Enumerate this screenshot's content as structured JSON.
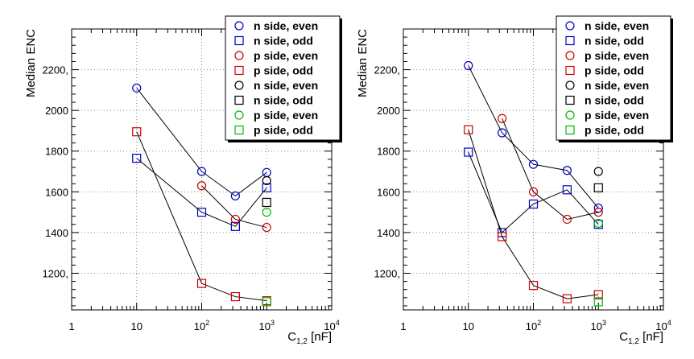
{
  "chart_data": [
    {
      "type": "scatter",
      "title": "",
      "xlabel": "C",
      "xlabel_sub": "1,2",
      "xlabel_unit": " [nF]",
      "ylabel": "Median ENC",
      "xscale": "log",
      "xlim": [
        1,
        10000
      ],
      "ylim": [
        1020,
        2400
      ],
      "x_ticks": [
        {
          "value": 1,
          "base": "1",
          "exp": ""
        },
        {
          "value": 10,
          "base": "10",
          "exp": ""
        },
        {
          "value": 100,
          "base": "10",
          "exp": "2"
        },
        {
          "value": 1000,
          "base": "10",
          "exp": "3"
        },
        {
          "value": 10000,
          "base": "10",
          "exp": "4"
        }
      ],
      "y_ticks": [
        {
          "value": 1200,
          "label": "1200,"
        },
        {
          "value": 1400,
          "label": "1400"
        },
        {
          "value": 1600,
          "label": "1600"
        },
        {
          "value": 1800,
          "label": "1800"
        },
        {
          "value": 2000,
          "label": "2000"
        },
        {
          "value": 2200,
          "label": "2200,"
        }
      ],
      "grid": true,
      "legend_position": "top-right",
      "series": [
        {
          "name": "n side, even",
          "marker": "circle",
          "color": "#0000cc",
          "connected": true,
          "x": [
            10,
            100,
            330,
            1000
          ],
          "y": [
            2110,
            1700,
            1580,
            1695
          ]
        },
        {
          "name": "n side, odd",
          "marker": "square",
          "color": "#0000cc",
          "connected": true,
          "x": [
            10,
            100,
            330,
            1000
          ],
          "y": [
            1765,
            1500,
            1430,
            1620
          ]
        },
        {
          "name": "p side, even",
          "marker": "circle",
          "color": "#cc0000",
          "connected": true,
          "x": [
            100,
            330,
            1000
          ],
          "y": [
            1630,
            1465,
            1425
          ]
        },
        {
          "name": "p side, odd",
          "marker": "square",
          "color": "#cc0000",
          "connected": true,
          "x": [
            10,
            100,
            330,
            1000
          ],
          "y": [
            1895,
            1150,
            1085,
            1065
          ]
        },
        {
          "name": "n side, even",
          "marker": "circle",
          "color": "#000000",
          "connected": false,
          "x": [
            1000
          ],
          "y": [
            1655
          ]
        },
        {
          "name": "n side, odd",
          "marker": "square",
          "color": "#000000",
          "connected": false,
          "x": [
            1000
          ],
          "y": [
            1548
          ]
        },
        {
          "name": "p side, even",
          "marker": "circle",
          "color": "#00bb00",
          "connected": false,
          "x": [
            1000
          ],
          "y": [
            1500
          ]
        },
        {
          "name": "p side, odd",
          "marker": "square",
          "color": "#00bb00",
          "connected": false,
          "x": [
            1000
          ],
          "y": [
            1060
          ]
        }
      ]
    },
    {
      "type": "scatter",
      "title": "",
      "xlabel": "C",
      "xlabel_sub": "1,2",
      "xlabel_unit": " [nF]",
      "ylabel": "Median ENC",
      "xscale": "log",
      "xlim": [
        1,
        10000
      ],
      "ylim": [
        1020,
        2400
      ],
      "x_ticks": [
        {
          "value": 1,
          "base": "1",
          "exp": ""
        },
        {
          "value": 10,
          "base": "10",
          "exp": ""
        },
        {
          "value": 100,
          "base": "10",
          "exp": "2"
        },
        {
          "value": 1000,
          "base": "10",
          "exp": "3"
        },
        {
          "value": 10000,
          "base": "10",
          "exp": "4"
        }
      ],
      "y_ticks": [
        {
          "value": 1200,
          "label": "1200,"
        },
        {
          "value": 1400,
          "label": "1400"
        },
        {
          "value": 1600,
          "label": "1600"
        },
        {
          "value": 1800,
          "label": "1800"
        },
        {
          "value": 2000,
          "label": "2000"
        },
        {
          "value": 2200,
          "label": "2200,"
        }
      ],
      "grid": true,
      "legend_position": "top-right",
      "series": [
        {
          "name": "n side, even",
          "marker": "circle",
          "color": "#0000cc",
          "connected": true,
          "x": [
            10,
            33,
            100,
            330,
            1000
          ],
          "y": [
            2220,
            1890,
            1735,
            1705,
            1520
          ]
        },
        {
          "name": "n side, odd",
          "marker": "square",
          "color": "#0000cc",
          "connected": true,
          "x": [
            10,
            33,
            100,
            330,
            1000
          ],
          "y": [
            1795,
            1400,
            1540,
            1610,
            1440
          ]
        },
        {
          "name": "p side, even",
          "marker": "circle",
          "color": "#cc0000",
          "connected": true,
          "x": [
            33,
            100,
            330,
            1000
          ],
          "y": [
            1960,
            1600,
            1465,
            1500
          ]
        },
        {
          "name": "p side, odd",
          "marker": "square",
          "color": "#cc0000",
          "connected": true,
          "x": [
            10,
            33,
            100,
            330,
            1000
          ],
          "y": [
            1905,
            1380,
            1140,
            1075,
            1095
          ]
        },
        {
          "name": "n side, even",
          "marker": "circle",
          "color": "#000000",
          "connected": false,
          "x": [
            1000
          ],
          "y": [
            1700
          ]
        },
        {
          "name": "n side, odd",
          "marker": "square",
          "color": "#000000",
          "connected": false,
          "x": [
            1000
          ],
          "y": [
            1620
          ]
        },
        {
          "name": "p side, even",
          "marker": "circle",
          "color": "#00bb00",
          "connected": false,
          "x": [
            1000
          ],
          "y": [
            1445
          ]
        },
        {
          "name": "p side, odd",
          "marker": "square",
          "color": "#00bb00",
          "connected": false,
          "x": [
            1000
          ],
          "y": [
            1060
          ]
        }
      ]
    }
  ]
}
